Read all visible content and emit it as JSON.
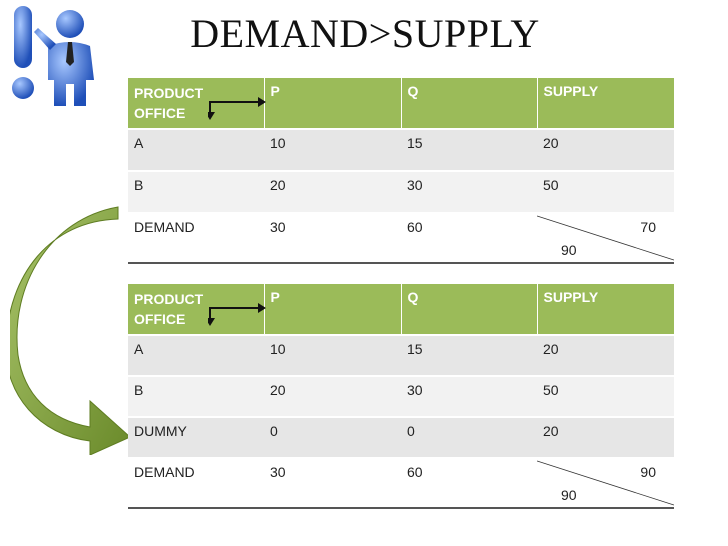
{
  "title": "DEMAND>SUPPLY",
  "table1": {
    "headers": {
      "corner_top": "PRODUCT",
      "corner_bottom": "OFFICE",
      "p": "P",
      "q": "Q",
      "supply": "SUPPLY"
    },
    "rows": [
      {
        "office": "A",
        "p": "10",
        "q": "15",
        "supply": "20"
      },
      {
        "office": "B",
        "p": "20",
        "q": "30",
        "supply": "50"
      }
    ],
    "demand": {
      "label": "DEMAND",
      "p": "30",
      "q": "60",
      "total_supply": "70",
      "total_demand": "90"
    }
  },
  "table2": {
    "headers": {
      "corner_top": "PRODUCT",
      "corner_bottom": "OFFICE",
      "p": "P",
      "q": "Q",
      "supply": "SUPPLY"
    },
    "rows": [
      {
        "office": "A",
        "p": "10",
        "q": "15",
        "supply": "20"
      },
      {
        "office": "B",
        "p": "20",
        "q": "30",
        "supply": "50"
      },
      {
        "office": "DUMMY",
        "p": "0",
        "q": "0",
        "supply": "20"
      }
    ],
    "demand": {
      "label": "DEMAND",
      "p": "30",
      "q": "60",
      "total_supply": "90",
      "total_demand": "90"
    }
  },
  "colors": {
    "header": "#9bbb59",
    "figure": "#3d6fd0",
    "arrow": "#7f9f3a"
  }
}
